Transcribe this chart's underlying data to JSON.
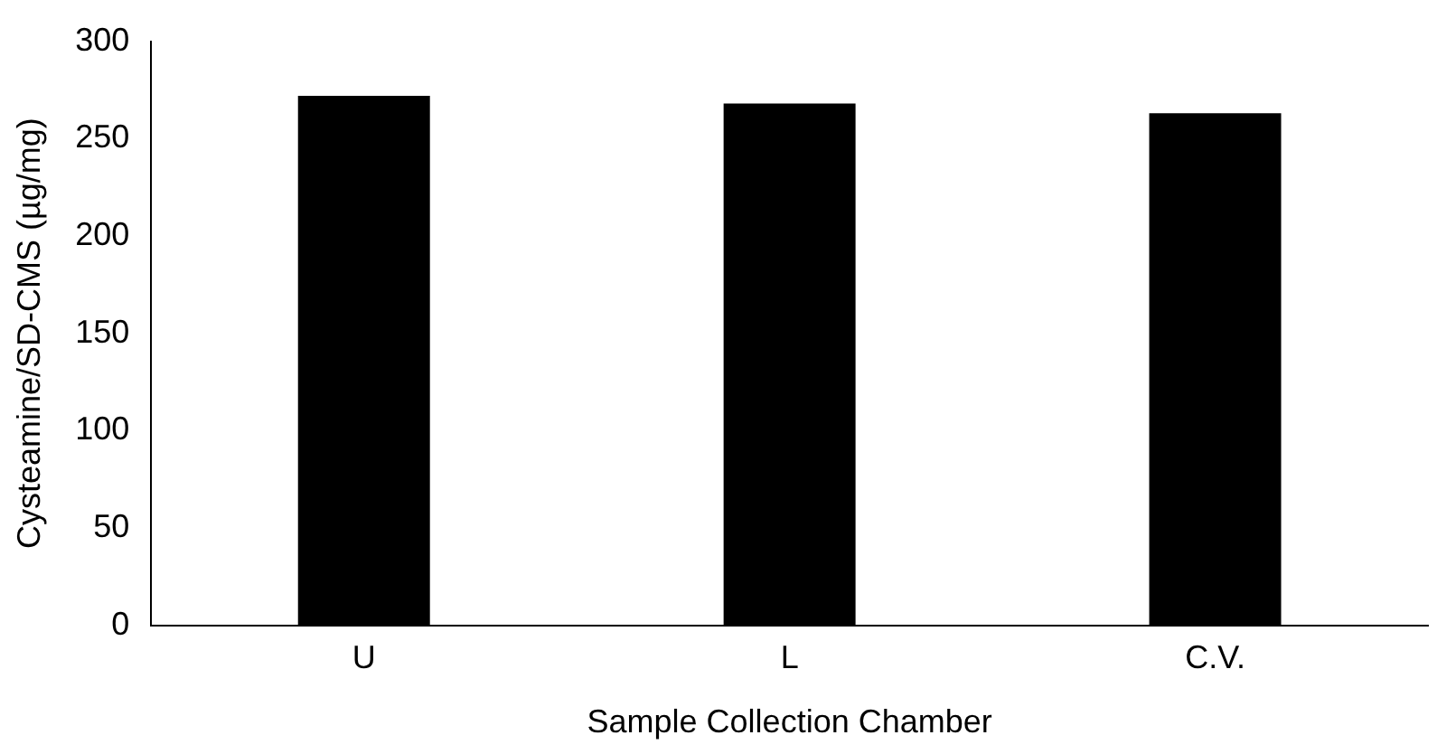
{
  "chart_data": {
    "type": "bar",
    "xlabel": "Sample Collection Chamber",
    "ylabel": "Cysteamine/SD-CMS (µg/mg)",
    "categories": [
      "U",
      "L",
      "C.V."
    ],
    "values": [
      272,
      268,
      263
    ],
    "color": "#000000",
    "ylim": [
      0,
      300
    ],
    "yticks": [
      0,
      50,
      100,
      150,
      200,
      250,
      300
    ],
    "grid": false,
    "legend": false
  }
}
